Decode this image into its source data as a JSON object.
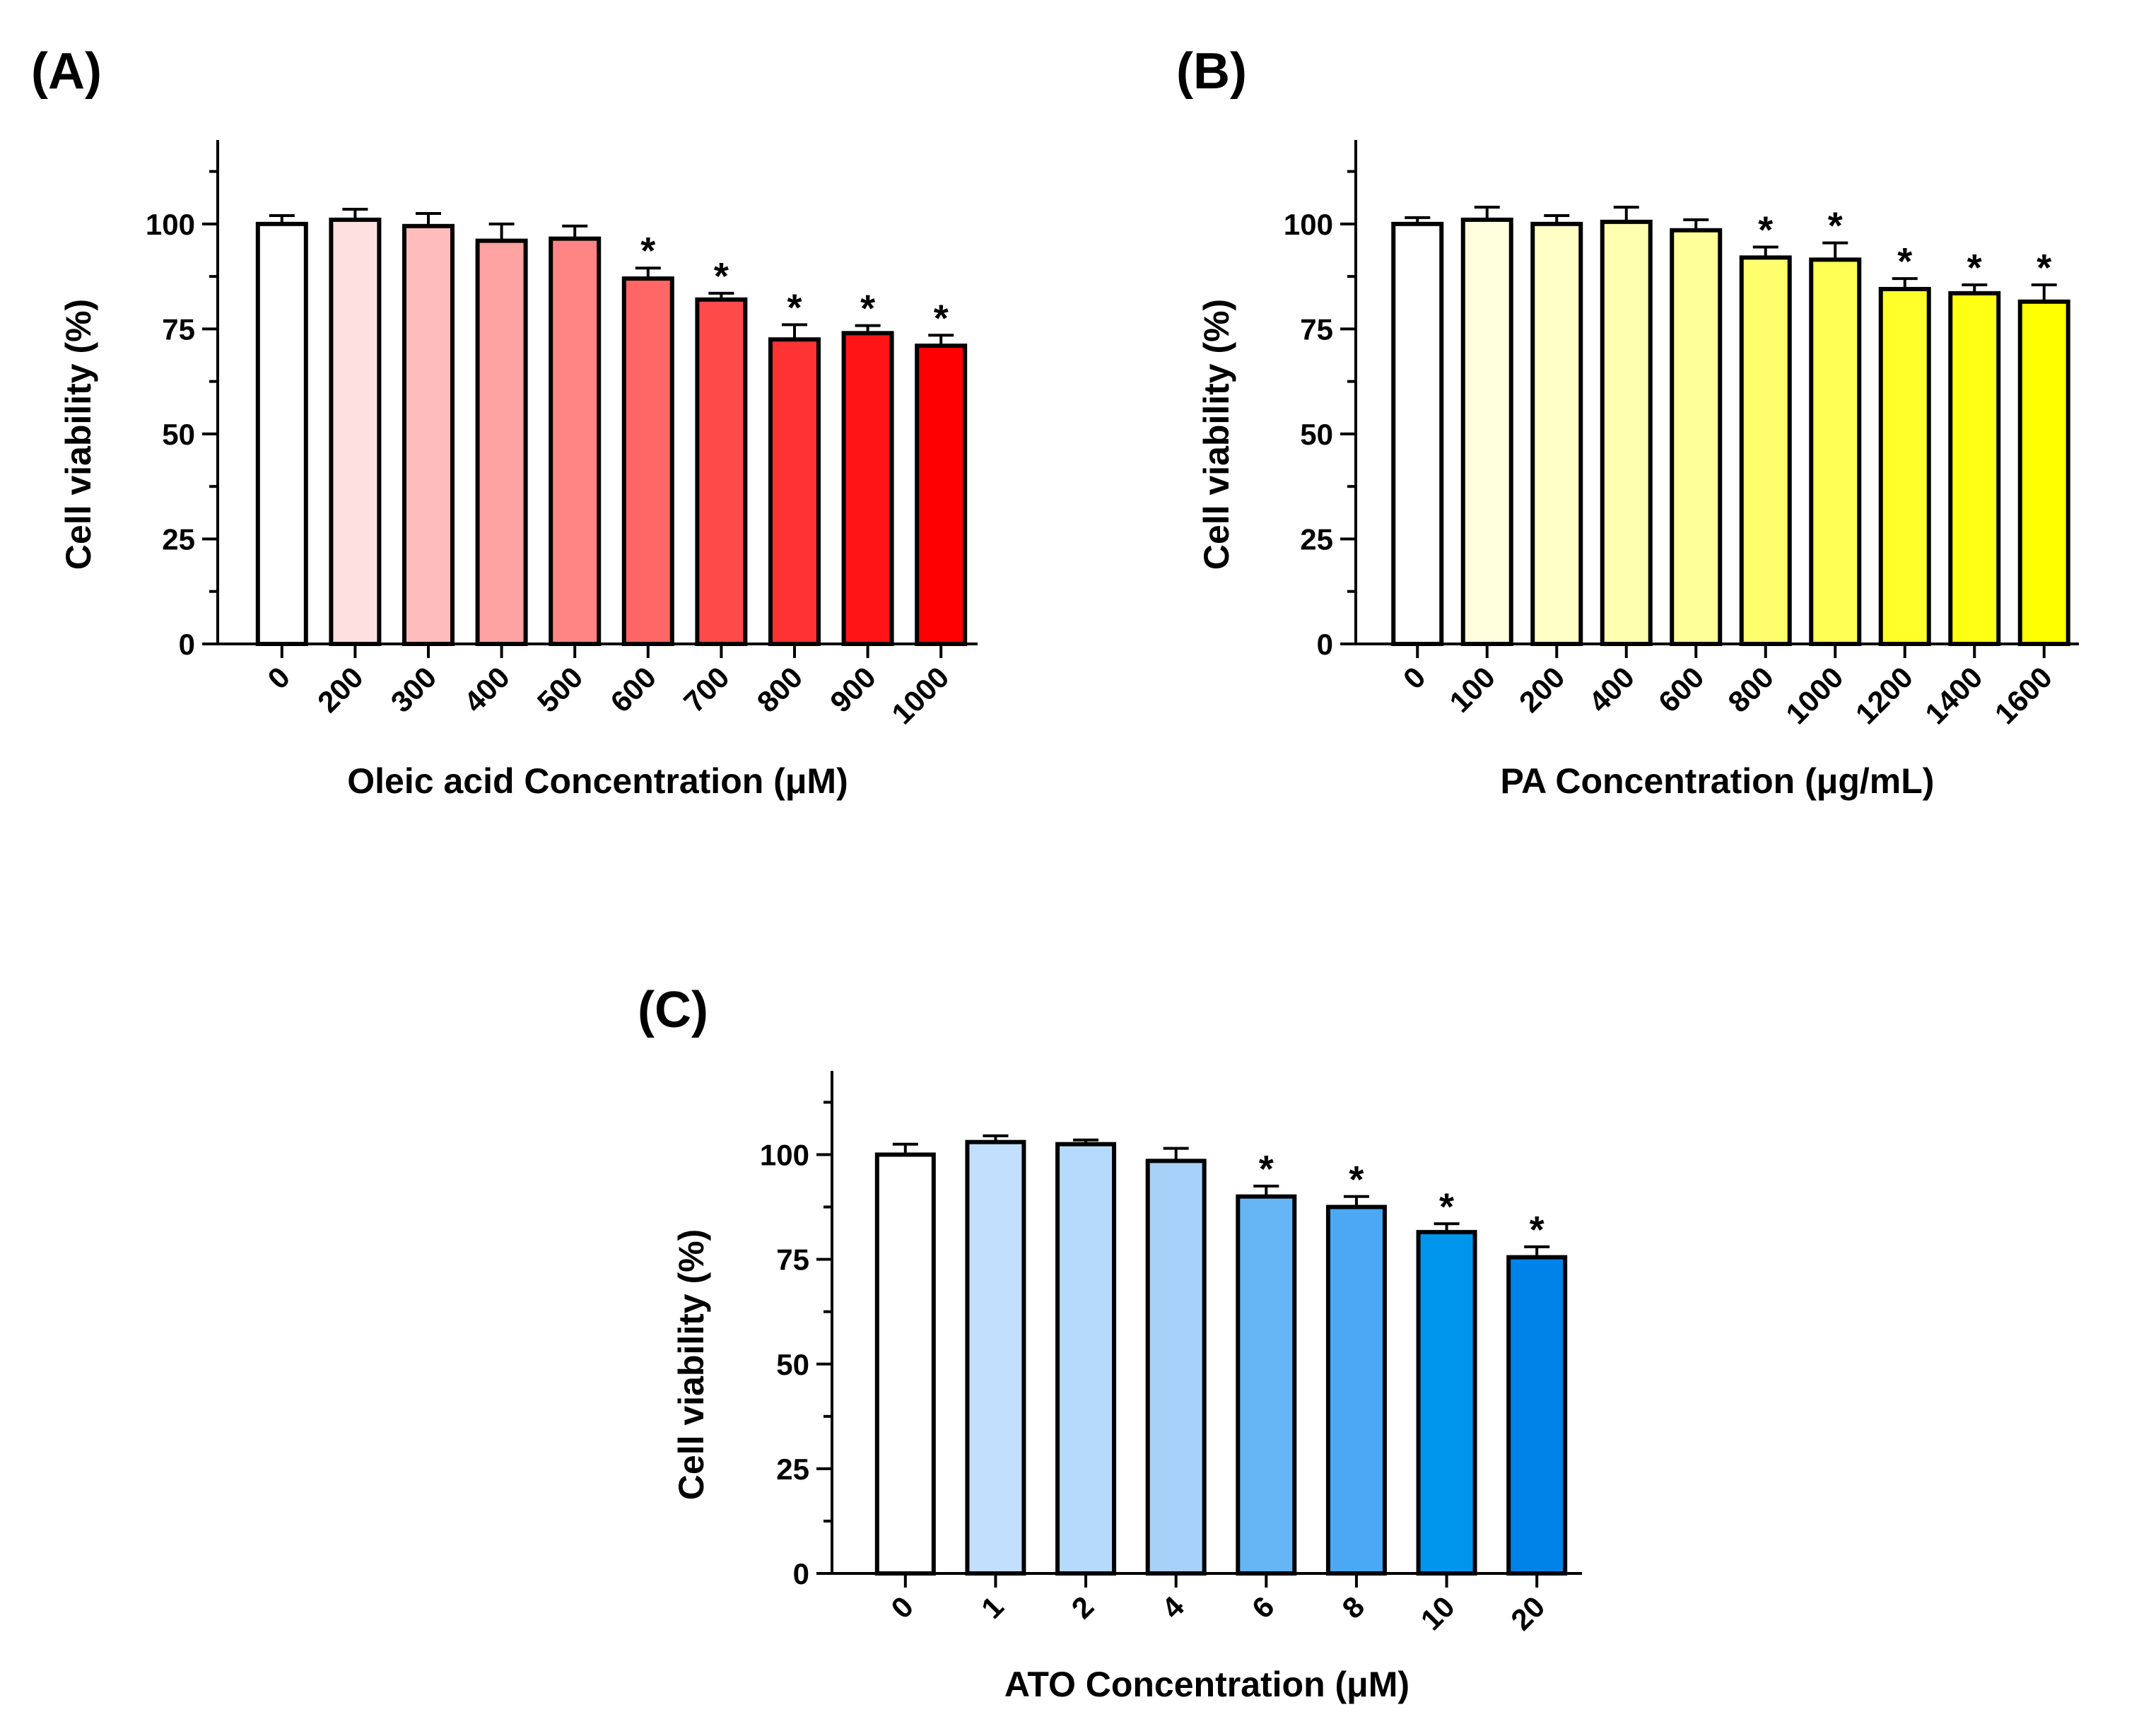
{
  "chart_data": [
    {
      "type": "bar",
      "panel_label": "(A)",
      "categories": [
        "0",
        "200",
        "300",
        "400",
        "500",
        "600",
        "700",
        "800",
        "900",
        "1000"
      ],
      "values": [
        100,
        101,
        99.5,
        96,
        96.5,
        87,
        82,
        72.5,
        74,
        71
      ],
      "errors": [
        2,
        2.5,
        3,
        4,
        3,
        2.5,
        1.5,
        3.5,
        1.8,
        2.5
      ],
      "significant": [
        false,
        false,
        false,
        false,
        false,
        true,
        true,
        true,
        true,
        true
      ],
      "significance_marker": "*",
      "colors": [
        "#ffffff",
        "#ffe0e0",
        "#ffbcbc",
        "#ffa2a2",
        "#ff8585",
        "#ff6666",
        "#ff4a4a",
        "#ff3333",
        "#ff1515",
        "#ff0000"
      ],
      "xlabel": "Oleic acid Concentration (μM)",
      "ylabel": "Cell viability (%)",
      "ylim": [
        0,
        120
      ],
      "yticks": [
        "0",
        "25",
        "50",
        "75",
        "100"
      ]
    },
    {
      "type": "bar",
      "panel_label": "(B)",
      "categories": [
        "0",
        "100",
        "200",
        "400",
        "600",
        "800",
        "1000",
        "1200",
        "1400",
        "1600"
      ],
      "values": [
        100,
        101,
        100,
        100.5,
        98.5,
        92,
        91.5,
        84.5,
        83.5,
        81.5
      ],
      "errors": [
        1.5,
        3,
        2,
        3.5,
        2.5,
        2.5,
        4,
        2.5,
        2,
        4
      ],
      "significant": [
        false,
        false,
        false,
        false,
        false,
        true,
        true,
        true,
        true,
        true
      ],
      "significance_marker": "*",
      "colors": [
        "#ffffff",
        "#ffffdd",
        "#ffffc6",
        "#ffffb0",
        "#ffff99",
        "#ffff6e",
        "#ffff55",
        "#ffff2a",
        "#ffff14",
        "#ffff00"
      ],
      "xlabel": "PA Concentration (μg/mL)",
      "ylabel": "Cell viability (%)",
      "ylim": [
        0,
        120
      ],
      "yticks": [
        "0",
        "25",
        "50",
        "75",
        "100"
      ]
    },
    {
      "type": "bar",
      "panel_label": "(C)",
      "categories": [
        "0",
        "1",
        "2",
        "4",
        "6",
        "8",
        "10",
        "20"
      ],
      "values": [
        100,
        103,
        102.5,
        98.5,
        90,
        87.5,
        81.5,
        75.5
      ],
      "errors": [
        2.5,
        1.5,
        1,
        3,
        2.5,
        2.5,
        2,
        2.5
      ],
      "significant": [
        false,
        false,
        false,
        false,
        true,
        true,
        true,
        true
      ],
      "significance_marker": "*",
      "colors": [
        "#ffffff",
        "#c0e0fd",
        "#b5dafc",
        "#a8d1fa",
        "#66b6f5",
        "#4aa8f4",
        "#0095ed",
        "#0083e8"
      ],
      "xlabel": "ATO Concentration (μM)",
      "ylabel": "Cell viability (%)",
      "ylim": [
        0,
        120
      ],
      "yticks": [
        "0",
        "25",
        "50",
        "75",
        "100"
      ]
    }
  ]
}
